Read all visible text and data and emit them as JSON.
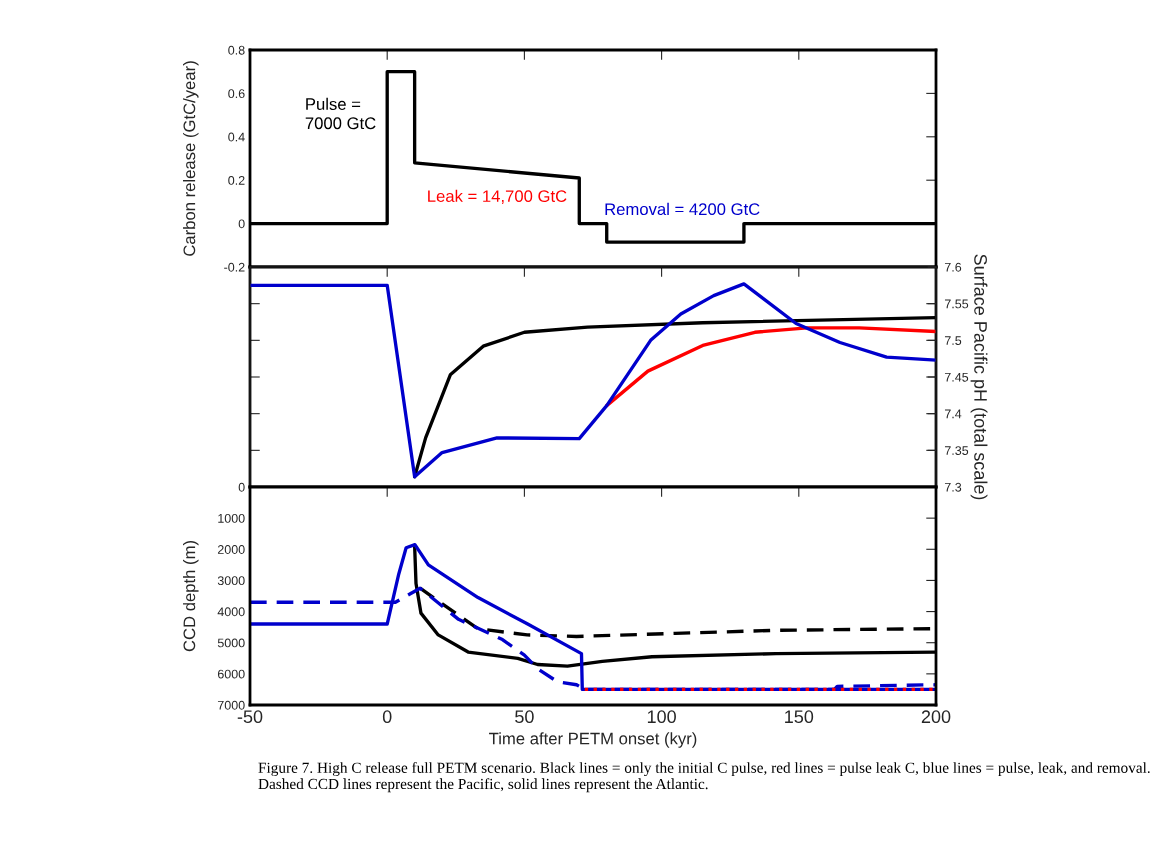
{
  "chart_data": [
    {
      "type": "line",
      "ylabel": "Carbon release (GtC/year)",
      "xlim": [
        -50,
        200
      ],
      "xticks": [
        -50,
        0,
        50,
        100,
        150,
        200
      ],
      "ylim": [
        -0.2,
        0.8
      ],
      "yticks": [
        -0.2,
        0,
        0.2,
        0.4,
        0.6,
        0.8
      ],
      "tick_labels": "y",
      "annotations": [
        "Pulse =\n7000 GtC",
        "Leak = 14,700 GtC",
        "Removal = 4200 GtC"
      ],
      "series": [
        {
          "color": "#000000",
          "x": [
            -50,
            0,
            0,
            10,
            10,
            70,
            70,
            80,
            80,
            130,
            130,
            200
          ],
          "values": [
            0,
            0,
            0.7,
            0.7,
            0.28,
            0.21,
            0,
            0,
            -0.085,
            -0.085,
            0,
            0
          ]
        }
      ]
    },
    {
      "type": "line",
      "y2label": "Surface Pacific pH (total scale)",
      "xlim": [
        -50,
        200
      ],
      "xticks": [
        -50,
        0,
        50,
        100,
        150,
        200
      ],
      "y2lim": [
        7.3,
        7.6
      ],
      "y2ticks": [
        7.3,
        7.35,
        7.4,
        7.45,
        7.5,
        7.55,
        7.6
      ],
      "tick_labels": "y",
      "series": [
        {
          "color": "#000000",
          "axis": "y2",
          "x": [
            10,
            14,
            23,
            35,
            50,
            73,
            115,
            200
          ],
          "values": [
            7.314,
            7.367,
            7.453,
            7.492,
            7.511,
            7.518,
            7.524,
            7.531
          ]
        },
        {
          "color": "#ff0000",
          "axis": "y2",
          "x": [
            80,
            95,
            115,
            134,
            153,
            172,
            200
          ],
          "values": [
            7.411,
            7.458,
            7.493,
            7.511,
            7.517,
            7.517,
            7.512
          ]
        },
        {
          "color": "#0000cc",
          "axis": "y2",
          "x": [
            -50,
            0,
            10,
            20,
            40,
            70,
            80,
            96,
            107,
            119,
            130,
            149,
            165,
            182,
            200
          ],
          "values": [
            7.575,
            7.575,
            7.314,
            7.347,
            7.367,
            7.366,
            7.411,
            7.5,
            7.536,
            7.561,
            7.577,
            7.523,
            7.497,
            7.477,
            7.473
          ]
        }
      ]
    },
    {
      "type": "line",
      "ylabel": "CCD depth (m)",
      "xlabel": "Time after PETM onset (kyr)",
      "xlim": [
        -50,
        200
      ],
      "xticks": [
        -50,
        0,
        50,
        100,
        150,
        200
      ],
      "ylim": [
        7000,
        0
      ],
      "yticks": [
        0,
        1000,
        2000,
        3000,
        4000,
        5000,
        6000,
        7000
      ],
      "annotations": [
        "Figure 7. High C release full PETM scenario. Black lines = only the initial C pulse, red lines = pulse leak C, blue lines = pulse, leak, and removal. Dashed CCD lines represent the Pacific, solid lines represent the Atlantic."
      ],
      "series": [
        {
          "color": "#000000",
          "line_style": "dashed",
          "x": [
            12,
            33,
            51,
            69,
            105,
            142,
            200
          ],
          "values": [
            3250,
            4550,
            4750,
            4800,
            4700,
            4600,
            4550
          ]
        },
        {
          "color": "#000000",
          "x": [
            10,
            10.5,
            12.3,
            18.6,
            29.5,
            47.6,
            54.8,
            65.7,
            78.4,
            96.5,
            141.7,
            200
          ],
          "values": [
            1900,
            3100,
            4050,
            4750,
            5300,
            5500,
            5700,
            5750,
            5600,
            5450,
            5350,
            5300
          ]
        },
        {
          "color": "#0000cc",
          "line_style": "dashed",
          "x": [
            -50,
            3,
            12,
            26,
            42,
            50,
            55,
            62,
            69,
            72,
            163,
            164,
            200
          ],
          "values": [
            3700,
            3700,
            3250,
            4250,
            4900,
            5400,
            5850,
            6250,
            6350,
            6500,
            6500,
            6400,
            6350
          ]
        },
        {
          "color": "#0000cc",
          "x": [
            -50,
            0,
            4.2,
            6.9,
            10.1,
            15,
            33.1,
            51.2,
            70.8,
            71.1,
            200
          ],
          "values": [
            4400,
            4400,
            2800,
            1950,
            1850,
            2500,
            3550,
            4400,
            5350,
            6500,
            6500
          ]
        },
        {
          "color": "#ff0000",
          "line_style": "dotted",
          "x": [
            72,
            200
          ],
          "values": [
            6500,
            6500
          ]
        }
      ]
    }
  ]
}
